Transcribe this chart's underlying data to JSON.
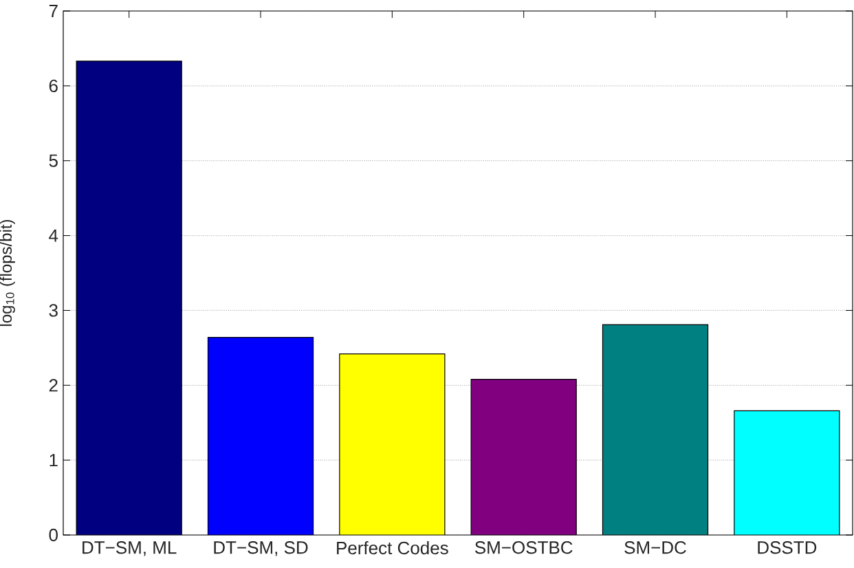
{
  "chart_data": {
    "type": "bar",
    "ylabel": "log$_{10}$ (flops/bit)",
    "categories": [
      "DT−SM, ML",
      "DT−SM, SD",
      "Perfect Codes",
      "SM−OSTBC",
      "SM−DC",
      "DSSTD"
    ],
    "values": [
      6.33,
      2.64,
      2.42,
      2.08,
      2.81,
      1.66
    ],
    "colors": [
      "#000080",
      "#0000ff",
      "#ffff00",
      "#800080",
      "#008080",
      "#00ffff"
    ],
    "ylim": [
      0,
      7
    ],
    "yticks": [
      0,
      1,
      2,
      3,
      4,
      5,
      6,
      7
    ],
    "grid": "y"
  }
}
